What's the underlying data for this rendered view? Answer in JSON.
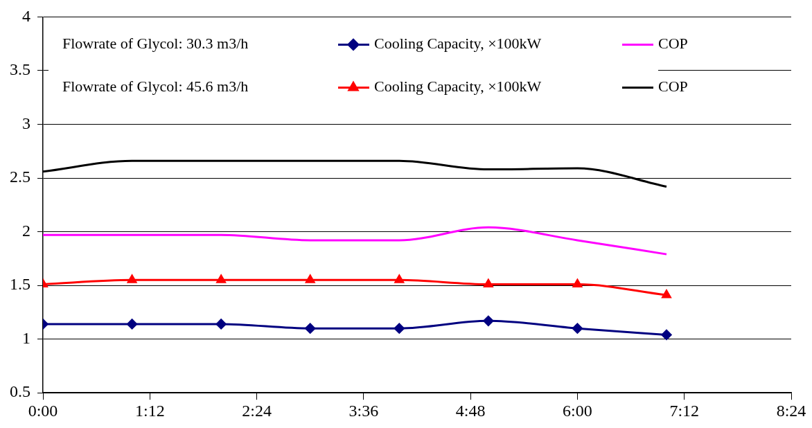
{
  "chart_data": {
    "type": "line",
    "x": [
      0,
      1,
      2,
      3,
      4,
      5,
      6,
      7
    ],
    "series": [
      {
        "name": "Cooling Capacity, ×100kW",
        "color": "#000080",
        "marker": "diamond",
        "values": [
          1.14,
          1.14,
          1.14,
          1.1,
          1.1,
          1.17,
          1.1,
          1.04
        ]
      },
      {
        "name": "COP",
        "color": "#ff00ff",
        "marker": "none",
        "values": [
          1.97,
          1.97,
          1.97,
          1.92,
          1.92,
          2.04,
          1.92,
          1.79
        ]
      },
      {
        "name": "Cooling Capacity, ×100kW",
        "color": "#ff0000",
        "marker": "triangle",
        "values": [
          1.51,
          1.55,
          1.55,
          1.55,
          1.55,
          1.51,
          1.51,
          1.41
        ]
      },
      {
        "name": "COP",
        "color": "#000000",
        "marker": "none",
        "values": [
          2.56,
          2.66,
          2.66,
          2.66,
          2.66,
          2.58,
          2.59,
          2.42
        ]
      }
    ],
    "annotations": [
      "Flowrate of Glycol: 30.3 m3/h",
      "Flowrate of Glycol: 45.6 m3/h"
    ],
    "xlim": [
      0,
      8.4
    ],
    "xticks": [
      {
        "value": 0,
        "label": "0:00"
      },
      {
        "value": 1.2,
        "label": "1:12"
      },
      {
        "value": 2.4,
        "label": "2:24"
      },
      {
        "value": 3.6,
        "label": "3:36"
      },
      {
        "value": 4.8,
        "label": "4:48"
      },
      {
        "value": 6,
        "label": "6:00"
      },
      {
        "value": 7.2,
        "label": "7:12"
      },
      {
        "value": 8.4,
        "label": "8:24"
      }
    ],
    "ylim": [
      0.5,
      4
    ],
    "yticks": [
      0.5,
      1,
      1.5,
      2,
      2.5,
      3,
      3.5,
      4
    ],
    "grid": "y",
    "legend": "top",
    "line_style": "solid"
  }
}
